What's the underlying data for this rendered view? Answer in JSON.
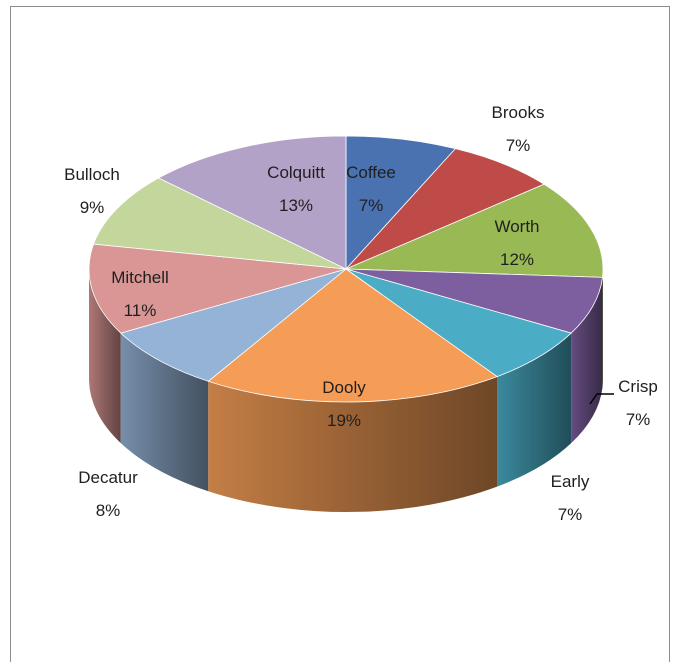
{
  "chart_data": {
    "type": "pie",
    "title": "",
    "slices": [
      {
        "label": "Coffee",
        "pct_label": "7%",
        "value": 7,
        "color": "#4a72b0"
      },
      {
        "label": "Brooks",
        "pct_label": "7%",
        "value": 7,
        "color": "#be4b48"
      },
      {
        "label": "Worth",
        "pct_label": "12%",
        "value": 12,
        "color": "#98b954"
      },
      {
        "label": "Crisp",
        "pct_label": "7%",
        "value": 7,
        "color": "#7d5fa0"
      },
      {
        "label": "Early",
        "pct_label": "7%",
        "value": 7,
        "color": "#4aacc5"
      },
      {
        "label": "Dooly",
        "pct_label": "19%",
        "value": 19,
        "color": "#f59d56"
      },
      {
        "label": "Decatur",
        "pct_label": "8%",
        "value": 8,
        "color": "#95b3d7"
      },
      {
        "label": "Mitchell",
        "pct_label": "11%",
        "value": 11,
        "color": "#d99694"
      },
      {
        "label": "Bulloch",
        "pct_label": "9%",
        "value": 9,
        "color": "#c3d69b"
      },
      {
        "label": "Colquitt",
        "pct_label": "13%",
        "value": 13,
        "color": "#b3a2c7"
      }
    ]
  }
}
